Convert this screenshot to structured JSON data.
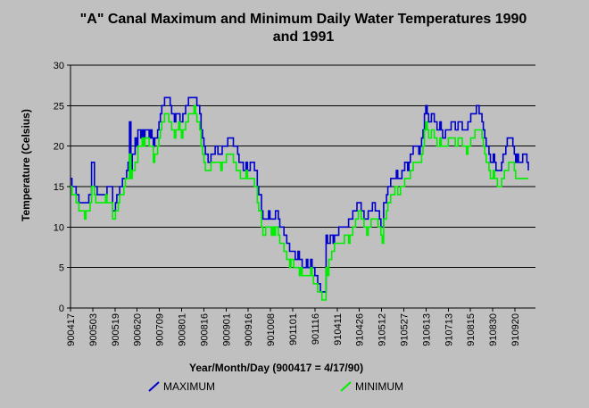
{
  "chart_data": {
    "type": "line",
    "title": "\"A\" Canal Maximum and Minimum Daily Water Temperatures 1990 and 1991",
    "xlabel": "Year/Month/Day (900417 = 4/17/90)",
    "ylabel": "Temperature (Celsius)",
    "ylim": [
      0,
      30
    ],
    "yticks": [
      0,
      5,
      10,
      15,
      20,
      25,
      30
    ],
    "xticks": [
      "900417",
      "900503",
      "900519",
      "900620",
      "900709",
      "900801",
      "900816",
      "900901",
      "900916",
      "901008",
      "901101",
      "901116",
      "910411",
      "910426",
      "910512",
      "910527",
      "910613",
      "910713",
      "910815",
      "910830",
      "910920"
    ],
    "grid": true,
    "legend_position": "bottom",
    "colors": {
      "MAXIMUM": "#0000cc",
      "MINIMUM": "#00ee00",
      "background": "#c0c0c0"
    },
    "series": [
      {
        "name": "MAXIMUM",
        "values": [
          16,
          15,
          15,
          15,
          14,
          14,
          13,
          13,
          13,
          13,
          13,
          13,
          13,
          14,
          14,
          18,
          18,
          15,
          15,
          14,
          14,
          14,
          14,
          14,
          14,
          14,
          15,
          15,
          15,
          15,
          12,
          12,
          13,
          14,
          14,
          15,
          15,
          16,
          16,
          16,
          17,
          18,
          23,
          17,
          19,
          19,
          21,
          20,
          22,
          22,
          21,
          22,
          21,
          22,
          22,
          22,
          21,
          22,
          21,
          20,
          21,
          21,
          22,
          23,
          24,
          25,
          25,
          26,
          26,
          26,
          26,
          25,
          24,
          24,
          23,
          24,
          24,
          24,
          23,
          23,
          24,
          24,
          25,
          25,
          26,
          26,
          26,
          26,
          26,
          26,
          25,
          25,
          24,
          22,
          21,
          20,
          19,
          19,
          18,
          18,
          19,
          19,
          19,
          20,
          20,
          19,
          19,
          19,
          20,
          20,
          20,
          20,
          21,
          21,
          21,
          21,
          20,
          20,
          20,
          19,
          18,
          18,
          18,
          17,
          17,
          18,
          17,
          17,
          18,
          18,
          18,
          17,
          17,
          15,
          14,
          14,
          12,
          11,
          11,
          11,
          11,
          12,
          11,
          11,
          11,
          11,
          12,
          12,
          11,
          10,
          10,
          10,
          9,
          9,
          8,
          8,
          7,
          7,
          7,
          7,
          6,
          6,
          7,
          6,
          6,
          5,
          5,
          5,
          6,
          5,
          5,
          6,
          5,
          5,
          4,
          4,
          3,
          3,
          2,
          2,
          2,
          2,
          9,
          8,
          8,
          9,
          9,
          8,
          9,
          9,
          9,
          10,
          10,
          10,
          10,
          10,
          10,
          10,
          11,
          11,
          11,
          12,
          12,
          12,
          13,
          13,
          13,
          12,
          12,
          11,
          11,
          11,
          12,
          12,
          12,
          13,
          13,
          12,
          12,
          12,
          11,
          10,
          10,
          13,
          13,
          14,
          15,
          15,
          16,
          16,
          16,
          16,
          17,
          16,
          16,
          16,
          17,
          17,
          18,
          18,
          17,
          18,
          19,
          19,
          20,
          20,
          20,
          20,
          19,
          20,
          21,
          22,
          24,
          25,
          24,
          23,
          23,
          24,
          24,
          23,
          23,
          22,
          22,
          23,
          22,
          21,
          21,
          22,
          22,
          22,
          22,
          23,
          23,
          23,
          22,
          22,
          23,
          23,
          23,
          22,
          22,
          22,
          22,
          23,
          23,
          24,
          24,
          24,
          24,
          25,
          25,
          24,
          24,
          23,
          22,
          21,
          20,
          20,
          19,
          18,
          18,
          19,
          18,
          17,
          17,
          17,
          17,
          18,
          19,
          19,
          20,
          21,
          21,
          21,
          21,
          20,
          19,
          18,
          19,
          18,
          18,
          18,
          19,
          19,
          19,
          18,
          17
        ]
      },
      {
        "name": "MINIMUM",
        "values": [
          15,
          14,
          14,
          14,
          13,
          13,
          12,
          12,
          12,
          12,
          11,
          12,
          12,
          12,
          13,
          15,
          15,
          14,
          13,
          13,
          13,
          13,
          13,
          13,
          13,
          14,
          13,
          13,
          13,
          13,
          11,
          11,
          12,
          12,
          13,
          14,
          14,
          14,
          15,
          16,
          16,
          16,
          19,
          16,
          17,
          17,
          18,
          18,
          20,
          20,
          20,
          21,
          20,
          21,
          21,
          21,
          20,
          20,
          20,
          18,
          19,
          19,
          20,
          21,
          22,
          23,
          23,
          24,
          24,
          24,
          23,
          23,
          22,
          22,
          21,
          22,
          22,
          23,
          22,
          21,
          22,
          22,
          23,
          23,
          24,
          24,
          24,
          24,
          25,
          24,
          23,
          23,
          22,
          20,
          19,
          18,
          17,
          17,
          17,
          17,
          18,
          18,
          18,
          18,
          18,
          18,
          18,
          17,
          18,
          18,
          18,
          19,
          19,
          19,
          19,
          19,
          18,
          18,
          17,
          17,
          17,
          16,
          16,
          16,
          16,
          17,
          16,
          16,
          16,
          16,
          16,
          15,
          15,
          13,
          12,
          12,
          10,
          9,
          9,
          10,
          10,
          10,
          10,
          9,
          10,
          9,
          10,
          10,
          9,
          8,
          8,
          8,
          7,
          7,
          6,
          6,
          5,
          6,
          6,
          5,
          5,
          5,
          5,
          4,
          5,
          4,
          4,
          4,
          4,
          4,
          4,
          5,
          4,
          3,
          3,
          3,
          2,
          2,
          2,
          1,
          1,
          1,
          5,
          4,
          6,
          6,
          7,
          7,
          8,
          8,
          8,
          8,
          8,
          8,
          8,
          9,
          9,
          9,
          8,
          9,
          9,
          10,
          10,
          11,
          11,
          12,
          12,
          11,
          11,
          10,
          10,
          9,
          10,
          10,
          11,
          11,
          11,
          11,
          11,
          10,
          10,
          9,
          8,
          11,
          11,
          12,
          13,
          13,
          14,
          14,
          14,
          15,
          15,
          14,
          14,
          15,
          15,
          15,
          16,
          16,
          16,
          16,
          17,
          17,
          18,
          18,
          18,
          18,
          18,
          18,
          19,
          20,
          22,
          23,
          22,
          21,
          21,
          22,
          22,
          21,
          21,
          20,
          20,
          21,
          20,
          20,
          20,
          20,
          20,
          21,
          21,
          21,
          21,
          21,
          20,
          20,
          21,
          21,
          21,
          20,
          20,
          20,
          19,
          20,
          20,
          21,
          21,
          21,
          22,
          22,
          22,
          22,
          22,
          21,
          20,
          19,
          18,
          18,
          17,
          16,
          16,
          17,
          16,
          16,
          15,
          15,
          15,
          16,
          16,
          17,
          17,
          17,
          18,
          18,
          18,
          18,
          17,
          16,
          16,
          16,
          16,
          16,
          16,
          16,
          16,
          16,
          16
        ]
      }
    ]
  }
}
